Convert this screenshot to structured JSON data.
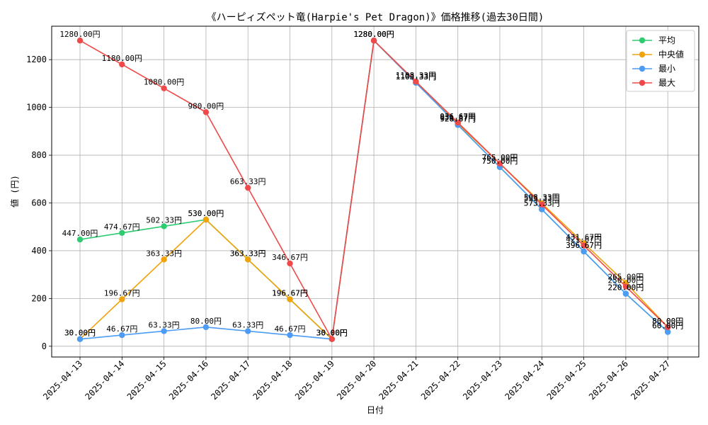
{
  "chart_data": {
    "type": "line",
    "title": "《ハーピィズペット竜(Harpie's Pet Dragon)》価格推移(過去30日間)",
    "xlabel": "日付",
    "ylabel": "値 (円)",
    "ylim": [
      -45,
      1340
    ],
    "yticks": [
      0,
      200,
      400,
      600,
      800,
      1000,
      1200
    ],
    "grid": true,
    "legend_position": "top-right",
    "value_suffix": "円",
    "x": [
      "2025-04-13",
      "2025-04-14",
      "2025-04-15",
      "2025-04-16",
      "2025-04-17",
      "2025-04-18",
      "2025-04-19",
      "2025-04-20",
      "2025-04-21",
      "2025-04-22",
      "2025-04-23",
      "2025-04-24",
      "2025-04-25",
      "2025-04-26",
      "2025-04-27"
    ],
    "series": [
      {
        "name": "平均",
        "color": "#2ecc71",
        "values": [
          447.0,
          474.67,
          502.33,
          530.0,
          363.33,
          196.67,
          30.0,
          1280.0,
          1103.33,
          926.67,
          750.0,
          573.33,
          396.67,
          220.0,
          60.0
        ]
      },
      {
        "name": "中央値",
        "color": "#f0a30a",
        "values": [
          30.0,
          196.67,
          363.33,
          530.0,
          363.33,
          196.67,
          30.0,
          1280.0,
          1103.33,
          931.67,
          765.0,
          598.33,
          431.67,
          265.0,
          80.0
        ]
      },
      {
        "name": "最小",
        "color": "#4c9bf5",
        "values": [
          30.0,
          46.67,
          63.33,
          80.0,
          63.33,
          46.67,
          30.0,
          1280.0,
          1103.33,
          926.67,
          750.0,
          573.33,
          396.67,
          220.0,
          60.0
        ]
      },
      {
        "name": "最大",
        "color": "#f0494a",
        "values": [
          1280.0,
          1180.0,
          1080.0,
          980.0,
          663.33,
          346.67,
          30.0,
          1280.0,
          1108.33,
          936.67,
          765.0,
          593.33,
          421.67,
          250.0,
          80.0
        ]
      }
    ]
  }
}
